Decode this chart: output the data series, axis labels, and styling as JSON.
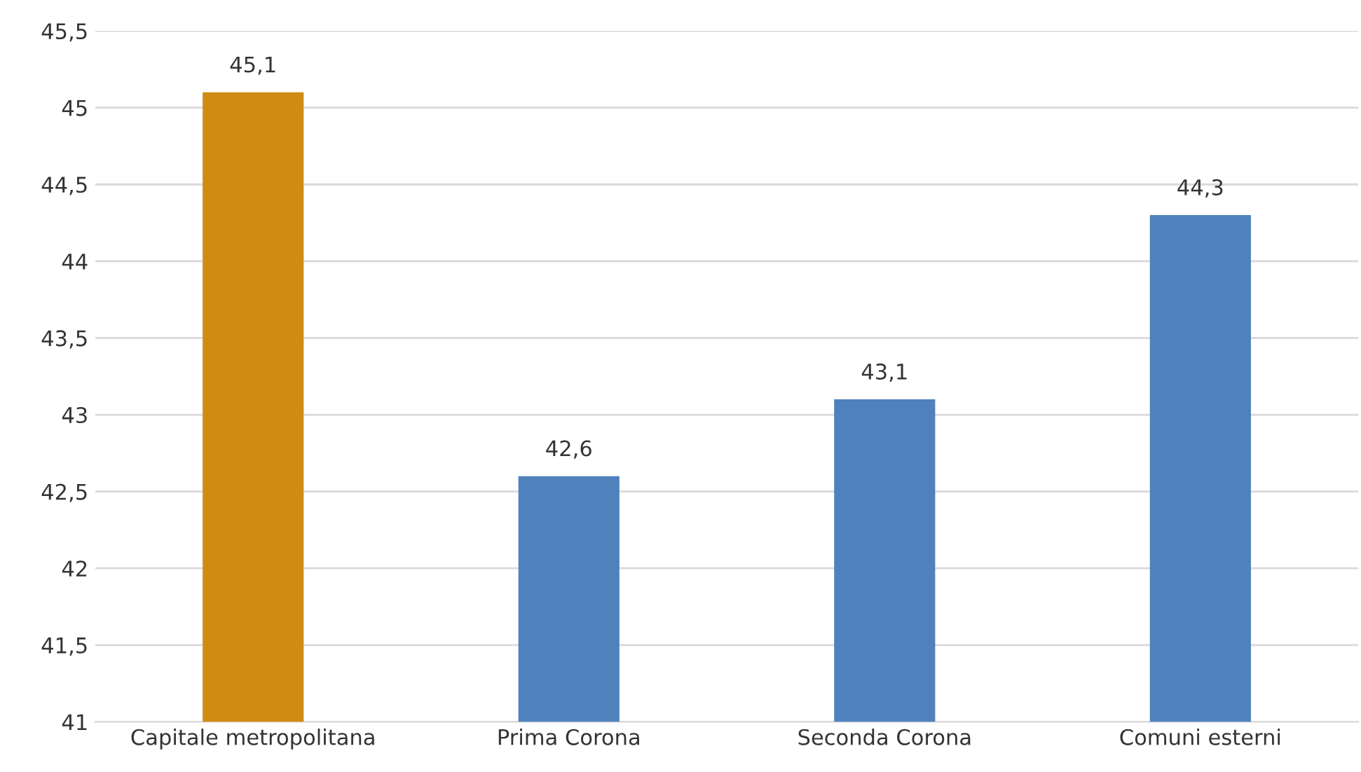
{
  "chart_data": {
    "type": "bar",
    "categories": [
      "Capitale metropolitana",
      "Prima Corona",
      "Seconda Corona",
      "Comuni esterni"
    ],
    "values": [
      45.1,
      42.6,
      43.1,
      44.3
    ],
    "colors": [
      "#d08c12",
      "#4f81bd",
      "#4f81bd",
      "#4f81bd"
    ],
    "value_labels": [
      "45,1",
      "42,6",
      "43,1",
      "44,3"
    ],
    "ylim": [
      41,
      45.5
    ],
    "yticks": [
      41,
      {
        "value": 41.5,
        "label": "41,5"
      },
      42,
      {
        "value": 42.5,
        "label": "42,5"
      },
      43,
      {
        "value": 43.5,
        "label": "43,5"
      },
      44,
      {
        "value": 44.5,
        "label": "44,5"
      },
      45,
      {
        "value": 45.5,
        "label": "45,5"
      }
    ],
    "grid": "y"
  }
}
